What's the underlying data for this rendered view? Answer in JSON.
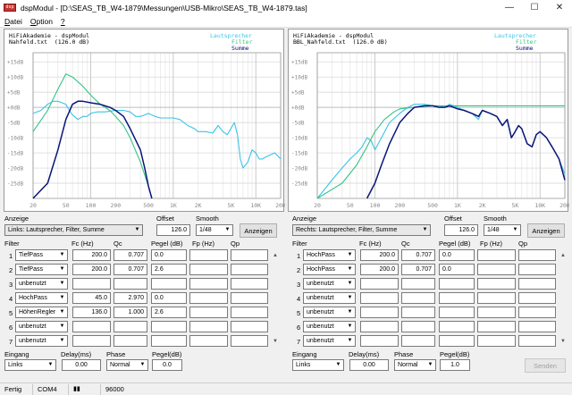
{
  "window": {
    "title": "dspModul - [D:\\SEAS_TB_W4-1879\\Messungen\\USB-Mikro\\SEAS_TB_W4-1879.tas]",
    "icon_label": "dsp",
    "controls": [
      "minimize-icon",
      "maximize-icon",
      "close-icon"
    ]
  },
  "menu": [
    {
      "label": "Datei",
      "underline": "D",
      "rest": "atei"
    },
    {
      "label": "Option",
      "underline": "O",
      "rest": "ption"
    },
    {
      "label": "?",
      "underline": "?",
      "rest": ""
    }
  ],
  "charts": [
    {
      "header1": "HiFiAkademie - dspModul",
      "header2": "Nahfeld.txt  (126.0 dB)",
      "legend": [
        "Lautsprecher",
        "Filter",
        "Summe"
      ]
    },
    {
      "header1": "HiFiAkademie - dspModul",
      "header2": "BBL_Nahfeld.txt  (126.0 dB)",
      "legend": [
        "Lautsprecher",
        "Filter",
        "Summe"
      ]
    }
  ],
  "chart_data": [
    {
      "type": "line",
      "xscale": "log",
      "xlim": [
        20,
        20000
      ],
      "ylim": [
        -30,
        18
      ],
      "y_ticks": [
        "+15dB",
        "+10dB",
        "+5dB",
        "+0dB",
        "-5dB",
        "-10dB",
        "-15dB",
        "-20dB",
        "-25dB"
      ],
      "x_ticks": [
        "20",
        "50",
        "100",
        "200",
        "500",
        "1K",
        "2K",
        "5K",
        "10K",
        "20K"
      ],
      "grid": true,
      "legend_position": "top-right",
      "colors": {
        "Lautsprecher": "#3cc3e6",
        "Filter": "#33c487",
        "Summe": "#0a1478"
      },
      "series": [
        {
          "name": "Lautsprecher",
          "points": [
            [
              20,
              -2
            ],
            [
              25,
              -1
            ],
            [
              30,
              1
            ],
            [
              35,
              2
            ],
            [
              40,
              2
            ],
            [
              45,
              1.5
            ],
            [
              50,
              1
            ],
            [
              55,
              -1
            ],
            [
              60,
              -2.5
            ],
            [
              70,
              -4
            ],
            [
              80,
              -3
            ],
            [
              90,
              -3
            ],
            [
              100,
              -2
            ],
            [
              120,
              -1.5
            ],
            [
              150,
              -1.5
            ],
            [
              200,
              -1
            ],
            [
              250,
              -1
            ],
            [
              300,
              -1.5
            ],
            [
              350,
              -3
            ],
            [
              400,
              -3
            ],
            [
              450,
              -2.5
            ],
            [
              500,
              -2
            ],
            [
              600,
              -3
            ],
            [
              700,
              -3.5
            ],
            [
              800,
              -3.5
            ],
            [
              1000,
              -3.5
            ],
            [
              1200,
              -4
            ],
            [
              1500,
              -6
            ],
            [
              1800,
              -7
            ],
            [
              2000,
              -8
            ],
            [
              2500,
              -8
            ],
            [
              3000,
              -8.5
            ],
            [
              3500,
              -6
            ],
            [
              4000,
              -8
            ],
            [
              4500,
              -9
            ],
            [
              5000,
              -7
            ],
            [
              5500,
              -5
            ],
            [
              6000,
              -9
            ],
            [
              6500,
              -17
            ],
            [
              7000,
              -20
            ],
            [
              8000,
              -18
            ],
            [
              9000,
              -14
            ],
            [
              10000,
              -15
            ],
            [
              11000,
              -17
            ],
            [
              12000,
              -17
            ],
            [
              14000,
              -16
            ],
            [
              17000,
              -15
            ],
            [
              20000,
              -17
            ]
          ]
        },
        {
          "name": "Filter",
          "points": [
            [
              20,
              -8
            ],
            [
              30,
              -1
            ],
            [
              40,
              6
            ],
            [
              50,
              11
            ],
            [
              60,
              10
            ],
            [
              80,
              7
            ],
            [
              100,
              4
            ],
            [
              130,
              1
            ],
            [
              170,
              -1
            ],
            [
              200,
              -3
            ],
            [
              250,
              -6
            ],
            [
              300,
              -10
            ],
            [
              400,
              -18
            ],
            [
              500,
              -26
            ],
            [
              550,
              -30
            ]
          ]
        },
        {
          "name": "Summe",
          "points": [
            [
              20,
              -30
            ],
            [
              30,
              -25
            ],
            [
              40,
              -14
            ],
            [
              50,
              -4
            ],
            [
              60,
              1
            ],
            [
              70,
              2
            ],
            [
              80,
              2
            ],
            [
              100,
              1.5
            ],
            [
              130,
              1
            ],
            [
              170,
              0
            ],
            [
              200,
              -1
            ],
            [
              250,
              -3
            ],
            [
              300,
              -7
            ],
            [
              400,
              -14
            ],
            [
              450,
              -20
            ],
            [
              500,
              -26
            ],
            [
              550,
              -30
            ]
          ]
        }
      ]
    },
    {
      "type": "line",
      "xscale": "log",
      "xlim": [
        20,
        20000
      ],
      "ylim": [
        -30,
        18
      ],
      "y_ticks": [
        "+15dB",
        "+10dB",
        "+5dB",
        "+0dB",
        "-5dB",
        "-10dB",
        "-15dB",
        "-20dB",
        "-25dB"
      ],
      "x_ticks": [
        "20",
        "50",
        "100",
        "200",
        "500",
        "1K",
        "2K",
        "5K",
        "10K",
        "20K"
      ],
      "grid": true,
      "legend_position": "top-right",
      "colors": {
        "Lautsprecher": "#3cc3e6",
        "Filter": "#33c487",
        "Summe": "#0a1478"
      },
      "series": [
        {
          "name": "Lautsprecher",
          "points": [
            [
              20,
              -30
            ],
            [
              30,
              -24
            ],
            [
              40,
              -20
            ],
            [
              50,
              -17
            ],
            [
              60,
              -15
            ],
            [
              70,
              -13
            ],
            [
              80,
              -10
            ],
            [
              90,
              -11
            ],
            [
              100,
              -14
            ],
            [
              120,
              -10
            ],
            [
              150,
              -5
            ],
            [
              200,
              -2
            ],
            [
              250,
              0
            ],
            [
              300,
              1
            ],
            [
              400,
              1
            ],
            [
              500,
              0.5
            ],
            [
              600,
              0.5
            ],
            [
              700,
              0
            ],
            [
              800,
              1
            ],
            [
              1000,
              0
            ],
            [
              1200,
              -1
            ],
            [
              1500,
              -2
            ],
            [
              1800,
              -4
            ],
            [
              2000,
              -1
            ],
            [
              2500,
              -2
            ],
            [
              3000,
              -3
            ],
            [
              3500,
              -6
            ],
            [
              4000,
              -4
            ],
            [
              4500,
              -10
            ],
            [
              5000,
              -8
            ],
            [
              5500,
              -6
            ],
            [
              6000,
              -7
            ],
            [
              7000,
              -12
            ],
            [
              8000,
              -13
            ],
            [
              9000,
              -9
            ],
            [
              10000,
              -8
            ],
            [
              12000,
              -10
            ],
            [
              14000,
              -13
            ],
            [
              17000,
              -17
            ],
            [
              20000,
              -22
            ]
          ]
        },
        {
          "name": "Filter",
          "points": [
            [
              20,
              -30
            ],
            [
              40,
              -25
            ],
            [
              60,
              -19
            ],
            [
              80,
              -13
            ],
            [
              100,
              -8
            ],
            [
              130,
              -4
            ],
            [
              170,
              -1.5
            ],
            [
              200,
              -0.5
            ],
            [
              300,
              0
            ],
            [
              500,
              0.5
            ],
            [
              1000,
              0.5
            ],
            [
              2000,
              0.5
            ],
            [
              5000,
              0.5
            ],
            [
              10000,
              0.5
            ],
            [
              20000,
              0.5
            ]
          ]
        },
        {
          "name": "Summe",
          "points": [
            [
              80,
              -30
            ],
            [
              100,
              -25
            ],
            [
              120,
              -19
            ],
            [
              150,
              -12
            ],
            [
              200,
              -5
            ],
            [
              250,
              -2
            ],
            [
              300,
              0
            ],
            [
              400,
              0.5
            ],
            [
              500,
              0.5
            ],
            [
              600,
              0
            ],
            [
              700,
              0
            ],
            [
              800,
              0.5
            ],
            [
              1000,
              -0.5
            ],
            [
              1200,
              -1
            ],
            [
              1500,
              -2
            ],
            [
              1800,
              -3
            ],
            [
              2000,
              -1
            ],
            [
              2500,
              -2
            ],
            [
              3000,
              -3
            ],
            [
              3500,
              -6
            ],
            [
              4000,
              -4
            ],
            [
              4500,
              -10
            ],
            [
              5000,
              -8
            ],
            [
              5500,
              -6
            ],
            [
              6000,
              -7
            ],
            [
              7000,
              -12
            ],
            [
              8000,
              -13
            ],
            [
              9000,
              -9
            ],
            [
              10000,
              -8
            ],
            [
              12000,
              -10
            ],
            [
              14000,
              -13
            ],
            [
              17000,
              -17
            ],
            [
              20000,
              -24
            ]
          ]
        }
      ]
    }
  ],
  "panels": [
    {
      "anzeige_label": "Anzeige",
      "anzeige_value": "Links: Lautsprecher, Filter, Summe",
      "offset_label": "Offset",
      "offset_value": "126.0",
      "smooth_label": "Smooth",
      "smooth_value": "1/48",
      "anzeigen_button": "Anzeigen",
      "headers": {
        "filter": "Filter",
        "fc": "Fc (Hz)",
        "qc": "Qc",
        "pegel": "Pegel (dB)",
        "fp": "Fp (Hz)",
        "qp": "Qp"
      },
      "rows": [
        {
          "n": "1",
          "type": "TiefPass",
          "fc": "200.0",
          "qc": "0.707",
          "pegel": "0.0",
          "fp": "",
          "qp": ""
        },
        {
          "n": "2",
          "type": "TiefPass",
          "fc": "200.0",
          "qc": "0.707",
          "pegel": "2.6",
          "fp": "",
          "qp": ""
        },
        {
          "n": "3",
          "type": "unbenutzt",
          "fc": "",
          "qc": "",
          "pegel": "",
          "fp": "",
          "qp": ""
        },
        {
          "n": "4",
          "type": "HochPass",
          "fc": "45.0",
          "qc": "2.970",
          "pegel": "0.0",
          "fp": "",
          "qp": ""
        },
        {
          "n": "5",
          "type": "HöhenRegler",
          "fc": "136.0",
          "qc": "1.000",
          "pegel": "2.6",
          "fp": "",
          "qp": ""
        },
        {
          "n": "6",
          "type": "unbenutzt",
          "fc": "",
          "qc": "",
          "pegel": "",
          "fp": "",
          "qp": ""
        },
        {
          "n": "7",
          "type": "unbenutzt",
          "fc": "",
          "qc": "",
          "pegel": "",
          "fp": "",
          "qp": ""
        }
      ],
      "eingang_label": "Eingang",
      "eingang_value": "Links",
      "delay_label": "Delay(ms)",
      "delay_value": "0.00",
      "phase_label": "Phase",
      "phase_value": "Normal",
      "pegel_label": "Pegel(dB)",
      "pegel_value": "0.0"
    },
    {
      "anzeige_label": "Anzeige",
      "anzeige_value": "Rechts: Lautsprecher, Filter, Summe",
      "offset_label": "Offset",
      "offset_value": "126.0",
      "smooth_label": "Smooth",
      "smooth_value": "1/48",
      "anzeigen_button": "Anzeigen",
      "headers": {
        "filter": "Filter",
        "fc": "Fc (Hz)",
        "qc": "Qc",
        "pegel": "Pegel (dB)",
        "fp": "Fp (Hz)",
        "qp": "Qp"
      },
      "rows": [
        {
          "n": "1",
          "type": "HochPass",
          "fc": "200.0",
          "qc": "0.707",
          "pegel": "0.0",
          "fp": "",
          "qp": ""
        },
        {
          "n": "2",
          "type": "HochPass",
          "fc": "200.0",
          "qc": "0.707",
          "pegel": "0.0",
          "fp": "",
          "qp": ""
        },
        {
          "n": "3",
          "type": "unbenutzt",
          "fc": "",
          "qc": "",
          "pegel": "",
          "fp": "",
          "qp": ""
        },
        {
          "n": "4",
          "type": "unbenutzt",
          "fc": "",
          "qc": "",
          "pegel": "",
          "fp": "",
          "qp": ""
        },
        {
          "n": "5",
          "type": "unbenutzt",
          "fc": "",
          "qc": "",
          "pegel": "",
          "fp": "",
          "qp": ""
        },
        {
          "n": "6",
          "type": "unbenutzt",
          "fc": "",
          "qc": "",
          "pegel": "",
          "fp": "",
          "qp": ""
        },
        {
          "n": "7",
          "type": "unbenutzt",
          "fc": "",
          "qc": "",
          "pegel": "",
          "fp": "",
          "qp": ""
        }
      ],
      "eingang_label": "Eingang",
      "eingang_value": "Links",
      "delay_label": "Delay(ms)",
      "delay_value": "0.00",
      "phase_label": "Phase",
      "phase_value": "Normal",
      "pegel_label": "Pegel(dB)",
      "pegel_value": "1.0",
      "senden_button": "Senden"
    }
  ],
  "status": {
    "state": "Fertig",
    "port": "COM4",
    "baud": "96000"
  }
}
